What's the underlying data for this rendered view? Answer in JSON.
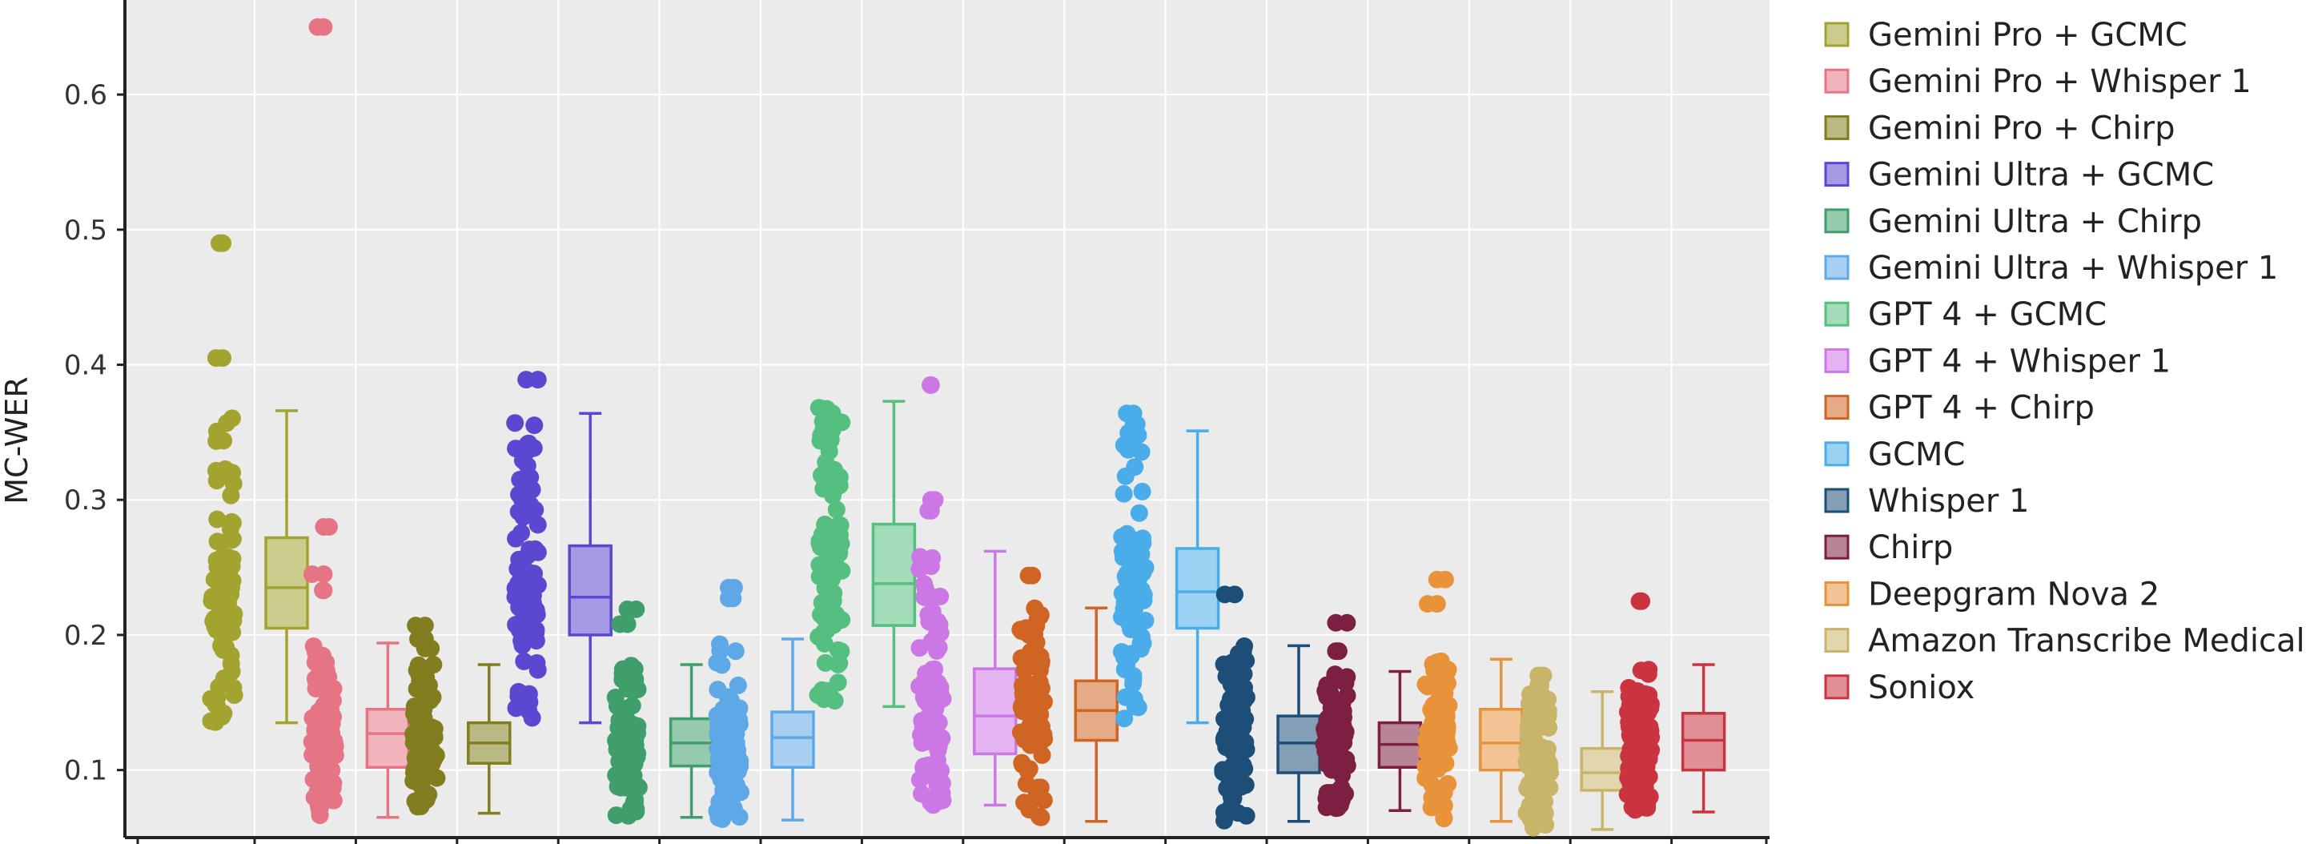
{
  "chart_data": {
    "type": "box",
    "title": "",
    "xlabel": "",
    "ylabel": "MC-WER",
    "ylim": [
      0.05,
      0.67
    ],
    "yticks": [
      0.1,
      0.2,
      0.3,
      0.4,
      0.5,
      0.6
    ],
    "ytick_labels": [
      "0.1",
      "0.2",
      "0.3",
      "0.4",
      "0.5",
      "0.6"
    ],
    "grid": true,
    "legend_position": "right",
    "series": [
      {
        "name": "Gemini Pro + GCMC",
        "color": "#A3A330",
        "q1": 0.205,
        "median": 0.235,
        "q3": 0.272,
        "whisker_low": 0.135,
        "whisker_high": 0.366,
        "min": 0.135,
        "max": 0.49,
        "outliers": [
          0.49,
          0.405
        ]
      },
      {
        "name": "Gemini Pro + Whisper 1",
        "color": "#E57585",
        "q1": 0.102,
        "median": 0.127,
        "q3": 0.145,
        "whisker_low": 0.065,
        "whisker_high": 0.194,
        "min": 0.065,
        "max": 0.65,
        "outliers": [
          0.65,
          0.28,
          0.245,
          0.233
        ]
      },
      {
        "name": "Gemini Pro + Chirp",
        "color": "#827D1E",
        "q1": 0.105,
        "median": 0.12,
        "q3": 0.135,
        "whisker_low": 0.068,
        "whisker_high": 0.178,
        "min": 0.068,
        "max": 0.207,
        "outliers": [
          0.207,
          0.197,
          0.19
        ]
      },
      {
        "name": "Gemini Ultra + GCMC",
        "color": "#5B48D0",
        "q1": 0.2,
        "median": 0.228,
        "q3": 0.266,
        "whisker_low": 0.135,
        "whisker_high": 0.364,
        "min": 0.135,
        "max": 0.389,
        "outliers": [
          0.389
        ]
      },
      {
        "name": "Gemini Ultra + Chirp",
        "color": "#3F9E6B",
        "q1": 0.103,
        "median": 0.12,
        "q3": 0.138,
        "whisker_low": 0.065,
        "whisker_high": 0.178,
        "min": 0.065,
        "max": 0.219,
        "outliers": [
          0.219,
          0.208
        ]
      },
      {
        "name": "Gemini Ultra + Whisper 1",
        "color": "#5FA8E8",
        "q1": 0.102,
        "median": 0.124,
        "q3": 0.143,
        "whisker_low": 0.063,
        "whisker_high": 0.197,
        "min": 0.063,
        "max": 0.235,
        "outliers": [
          0.235,
          0.227
        ]
      },
      {
        "name": "GPT 4 + GCMC",
        "color": "#55BF80",
        "q1": 0.207,
        "median": 0.238,
        "q3": 0.282,
        "whisker_low": 0.147,
        "whisker_high": 0.373,
        "min": 0.147,
        "max": 0.373,
        "outliers": []
      },
      {
        "name": "GPT 4 + Whisper 1",
        "color": "#CC77E6",
        "q1": 0.112,
        "median": 0.14,
        "q3": 0.175,
        "whisker_low": 0.074,
        "whisker_high": 0.262,
        "min": 0.074,
        "max": 0.385,
        "outliers": [
          0.385,
          0.3,
          0.292
        ]
      },
      {
        "name": "GPT 4 + Chirp",
        "color": "#CF6423",
        "q1": 0.122,
        "median": 0.144,
        "q3": 0.166,
        "whisker_low": 0.062,
        "whisker_high": 0.22,
        "min": 0.062,
        "max": 0.244,
        "outliers": [
          0.244
        ]
      },
      {
        "name": "GCMC",
        "color": "#4AADEA",
        "q1": 0.205,
        "median": 0.232,
        "q3": 0.264,
        "whisker_low": 0.135,
        "whisker_high": 0.351,
        "min": 0.135,
        "max": 0.364,
        "outliers": [
          0.364,
          0.356
        ]
      },
      {
        "name": "Whisper 1",
        "color": "#1D4E78",
        "q1": 0.098,
        "median": 0.12,
        "q3": 0.14,
        "whisker_low": 0.062,
        "whisker_high": 0.192,
        "min": 0.062,
        "max": 0.23,
        "outliers": [
          0.23
        ]
      },
      {
        "name": "Chirp",
        "color": "#7D1F42",
        "q1": 0.102,
        "median": 0.119,
        "q3": 0.135,
        "whisker_low": 0.07,
        "whisker_high": 0.173,
        "min": 0.07,
        "max": 0.209,
        "outliers": [
          0.209,
          0.188
        ]
      },
      {
        "name": "Deepgram Nova 2",
        "color": "#E8923A",
        "q1": 0.1,
        "median": 0.12,
        "q3": 0.145,
        "whisker_low": 0.062,
        "whisker_high": 0.182,
        "min": 0.062,
        "max": 0.241,
        "outliers": [
          0.241,
          0.223
        ]
      },
      {
        "name": "Amazon Transcribe Medical",
        "color": "#C9B56A",
        "q1": 0.085,
        "median": 0.098,
        "q3": 0.116,
        "whisker_low": 0.056,
        "whisker_high": 0.158,
        "min": 0.056,
        "max": 0.17,
        "outliers": [
          0.17,
          0.163
        ]
      },
      {
        "name": "Soniox",
        "color": "#C93440",
        "q1": 0.1,
        "median": 0.122,
        "q3": 0.142,
        "whisker_low": 0.069,
        "whisker_high": 0.178,
        "min": 0.069,
        "max": 0.225,
        "outliers": [
          0.225
        ]
      }
    ]
  }
}
